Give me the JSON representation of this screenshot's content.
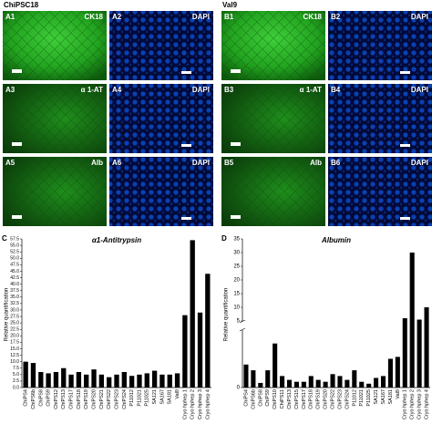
{
  "figure": {
    "panels": [
      {
        "title": "ChiPSC18",
        "images": [
          {
            "label": "A1",
            "stain": "CK18"
          },
          {
            "label": "A2",
            "stain": "DAPI"
          },
          {
            "label": "A3",
            "stain": "α 1-AT"
          },
          {
            "label": "A4",
            "stain": "DAPI"
          },
          {
            "label": "A5",
            "stain": "Alb"
          },
          {
            "label": "A6",
            "stain": "DAPI"
          }
        ]
      },
      {
        "title": "Val9",
        "images": [
          {
            "label": "B1",
            "stain": "CK18"
          },
          {
            "label": "B2",
            "stain": "DAPI"
          },
          {
            "label": "B3",
            "stain": "α 1-AT"
          },
          {
            "label": "B4",
            "stain": "DAPI"
          },
          {
            "label": "B5",
            "stain": "Alb"
          },
          {
            "label": "B6",
            "stain": "DAPI"
          }
        ]
      }
    ]
  },
  "chart_data": [
    {
      "type": "bar",
      "panel": "C",
      "title": "α1-Antitrypsin",
      "ylabel": "Relative quantification",
      "color": "#000000",
      "categories": [
        "ChiPS4",
        "ChiPS6b",
        "ChiPS8",
        "ChiPS9",
        "ChiPS12",
        "ChiPS13",
        "ChiPS17",
        "ChiPS18",
        "ChiPS19",
        "ChiPS20",
        "ChiPS21",
        "ChiPS22",
        "ChiPS23",
        "ChiPS24",
        "P11012",
        "P11021",
        "P11025",
        "SA121",
        "SA167",
        "SA181",
        "Val9",
        "Cryo hphep 1",
        "Cryo hphep 2",
        "Cryo hphep 3",
        "Cryo hphep 4"
      ],
      "values": [
        10,
        9.5,
        6,
        5.5,
        6,
        7.5,
        5,
        6,
        5,
        7,
        5,
        4,
        5,
        6,
        4.5,
        5,
        5.5,
        6.5,
        5,
        5,
        5.5,
        28,
        57,
        29,
        44
      ],
      "ylim": [
        0,
        57.5
      ],
      "yticks": [
        {
          "value": 0,
          "label": "0.0"
        },
        {
          "value": 2.5,
          "label": "2.5"
        },
        {
          "value": 5,
          "label": "5.0"
        },
        {
          "value": 7.5,
          "label": "7.5"
        },
        {
          "value": 10,
          "label": "10.0"
        },
        {
          "value": 12.5,
          "label": "12.5"
        },
        {
          "value": 15,
          "label": "15.0"
        },
        {
          "value": 17.5,
          "label": "17.5"
        },
        {
          "value": 20,
          "label": "20.0"
        },
        {
          "value": 22.5,
          "label": "22.5"
        },
        {
          "value": 25,
          "label": "25.0"
        },
        {
          "value": 27.5,
          "label": "27.5"
        },
        {
          "value": 30,
          "label": "30.0"
        },
        {
          "value": 32.5,
          "label": "32.5"
        },
        {
          "value": 35,
          "label": "35.0"
        },
        {
          "value": 37.5,
          "label": "37.5"
        },
        {
          "value": 40,
          "label": "40.0"
        },
        {
          "value": 42.5,
          "label": "42.5"
        },
        {
          "value": 45,
          "label": "45.0"
        },
        {
          "value": 47.5,
          "label": "47.5"
        },
        {
          "value": 50,
          "label": "50.0"
        },
        {
          "value": 52.5,
          "label": "52.5"
        },
        {
          "value": 55,
          "label": "55.0"
        },
        {
          "value": 57.5,
          "label": "57.5"
        }
      ]
    },
    {
      "type": "broken-bar",
      "panel": "D",
      "title": "Albumin",
      "ylabel": "Relative quantification",
      "color": "#000000",
      "categories": [
        "ChiPS4",
        "ChiPS6b",
        "ChiPS8",
        "ChiPS9",
        "ChiPS10",
        "ChiPS11",
        "ChiPS13",
        "ChiPS15",
        "ChiPS17",
        "ChiPS18",
        "ChiPS19",
        "ChiPS20",
        "ChiPS22",
        "ChiPS23",
        "ChiPS24",
        "P11012",
        "P11021",
        "P11025",
        "SA121",
        "SA167",
        "SA181",
        "Val9",
        "Cryo hphep 1",
        "Cryo hphep 2",
        "Cryo hphep 3",
        "Cryo hphep 4"
      ],
      "values": [
        0.06,
        0.045,
        0.012,
        0.045,
        0.115,
        0.03,
        0.02,
        0.015,
        0.015,
        0.03,
        0.02,
        0.015,
        0.035,
        0.03,
        0.02,
        0.045,
        0.015,
        0.01,
        0.025,
        0.03,
        0.075,
        0.08,
        6,
        30,
        5.5,
        10
      ],
      "ylim": [
        0,
        0.15
      ],
      "yticks": [
        0
      ],
      "y2lim": [
        5,
        35
      ],
      "y2ticks": [
        5,
        10,
        15,
        20,
        25,
        30,
        35
      ]
    }
  ]
}
